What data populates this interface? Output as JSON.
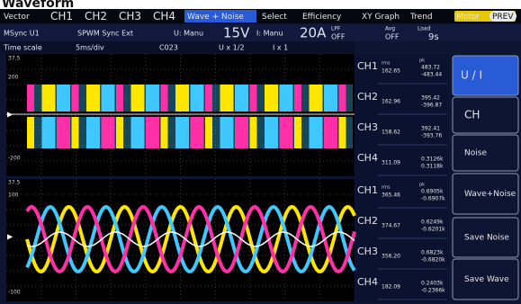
{
  "header": {
    "title": "Waveform"
  },
  "tabs": [
    "Vector",
    "CH1",
    "CH2",
    "CH3",
    "CH4",
    "Wave + Noise",
    "Select",
    "Efficiency",
    "XY Graph",
    "Trend",
    "Motor",
    "PREV"
  ],
  "status": [
    "MSync U1",
    "SPWM Sync Ext",
    "U: Manu",
    "15V",
    "I: Manu",
    "20A",
    "LPF",
    "OFF",
    "Avg",
    "OFF",
    "Load",
    "9s"
  ],
  "scale_row": [
    "Time scale",
    "5ms/div",
    "C023",
    "U x 1/2",
    "I x 1"
  ],
  "axes": {
    "upper": [
      "37.5",
      "200",
      "-200"
    ],
    "lower": [
      "37.5",
      "100",
      "-100"
    ]
  },
  "readouts": [
    {
      "channels": [
        {
          "label": "CH1",
          "rms": "162.65",
          "pk_pos": "483.72",
          "pk_neg": "-483.44"
        },
        {
          "label": "CH2",
          "rms": "162.96",
          "pk_pos": "395.42",
          "pk_neg": "-396.87"
        },
        {
          "label": "CH3",
          "rms": "158.62",
          "pk_pos": "392.41",
          "pk_neg": "-393.76"
        },
        {
          "label": "CH4",
          "rms": "311.09",
          "pk_pos": "0.3126k",
          "pk_neg": "0.3118k"
        }
      ]
    },
    {
      "channels": [
        {
          "label": "CH1",
          "rms": "365.46",
          "pk_pos": "0.6905k",
          "pk_neg": "-0.6907k"
        },
        {
          "label": "CH2",
          "rms": "374.67",
          "pk_pos": "0.6249k",
          "pk_neg": "-0.6201k"
        },
        {
          "label": "CH3",
          "rms": "356.20",
          "pk_pos": "0.6823k",
          "pk_neg": "-0.6820k"
        },
        {
          "label": "CH4",
          "rms": "182.09",
          "pk_pos": "0.2403k",
          "pk_neg": "-0.2366k"
        }
      ]
    }
  ],
  "readout_units": {
    "rms": "rms",
    "pk": "pk"
  },
  "menu": [
    "U / I",
    "CH",
    "Noise",
    "Wave+Noise",
    "Save Noise",
    "Save Wave"
  ]
}
